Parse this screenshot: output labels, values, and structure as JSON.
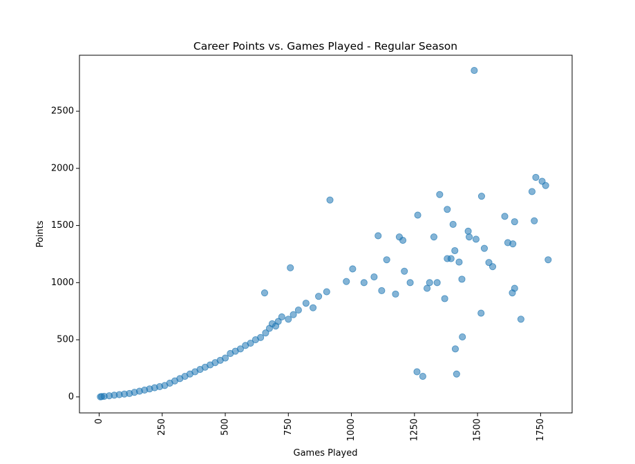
{
  "chart_data": {
    "type": "scatter",
    "title": "Career Points vs. Games Played - Regular Season",
    "xlabel": "Games Played",
    "ylabel": "Points",
    "xlim": [
      -78,
      1875
    ],
    "ylim": [
      -140,
      2990
    ],
    "x_ticks": [
      0,
      250,
      500,
      750,
      1000,
      1250,
      1500,
      1750
    ],
    "x_tick_labels": [
      "0",
      "250",
      "500",
      "750",
      "1000",
      "1250",
      "1500",
      "1750"
    ],
    "x_tick_rotation": 90,
    "y_ticks": [
      0,
      500,
      1000,
      1500,
      2000,
      2500
    ],
    "y_tick_labels": [
      "0",
      "500",
      "1000",
      "1500",
      "2000",
      "2500"
    ],
    "grid": false,
    "legend": "none",
    "marker": {
      "color": "#1f77b4",
      "alpha": 0.55
    },
    "series": [
      {
        "x": [
          1487,
          915,
          1731,
          1756,
          1770,
          1725,
          1350,
          1516,
          1380,
          1608,
          1647,
          1716,
          1780,
          1640,
          1463,
          1440,
          1545,
          1620,
          1527,
          1395,
          1494,
          1427,
          1412,
          1263,
          1204,
          1190,
          1560,
          1514,
          1672,
          1647,
          1638,
          1417,
          1438,
          1467,
          1403,
          1283,
          1327,
          1106,
          1140,
          758,
          656,
          1005,
          1090,
          1050,
          1175,
          1233,
          1380,
          1410,
          1300,
          1210,
          1260,
          1370,
          1340,
          1310,
          1120,
          980,
          902,
          870,
          848,
          820,
          790,
          770,
          750,
          724,
          710,
          700,
          686,
          675,
          660,
          640,
          620,
          600,
          580,
          560,
          540,
          520,
          500,
          480,
          460,
          440,
          420,
          400,
          380,
          360,
          340,
          320,
          300,
          280,
          260,
          240,
          220,
          200,
          180,
          160,
          140,
          120,
          100,
          80,
          60,
          40,
          20,
          10,
          5
        ],
        "y": [
          2857,
          1723,
          1921,
          1887,
          1850,
          1541,
          1771,
          1756,
          1641,
          1580,
          1533,
          1797,
          1200,
          1339,
          1450,
          525,
          1176,
          1350,
          1300,
          1210,
          1380,
          1180,
          420,
          1591,
          1370,
          1400,
          1140,
          733,
          680,
          950,
          910,
          200,
          1030,
          1400,
          1510,
          180,
          1400,
          1410,
          1200,
          1130,
          910,
          1120,
          1050,
          1000,
          900,
          1000,
          1210,
          1280,
          950,
          1100,
          220,
          860,
          1000,
          1000,
          930,
          1010,
          920,
          880,
          780,
          820,
          760,
          720,
          680,
          700,
          660,
          620,
          640,
          600,
          560,
          520,
          500,
          470,
          450,
          420,
          400,
          380,
          340,
          320,
          300,
          280,
          260,
          240,
          220,
          200,
          180,
          160,
          140,
          120,
          100,
          90,
          80,
          70,
          60,
          50,
          40,
          30,
          25,
          20,
          15,
          10,
          5,
          3,
          1
        ]
      }
    ]
  }
}
